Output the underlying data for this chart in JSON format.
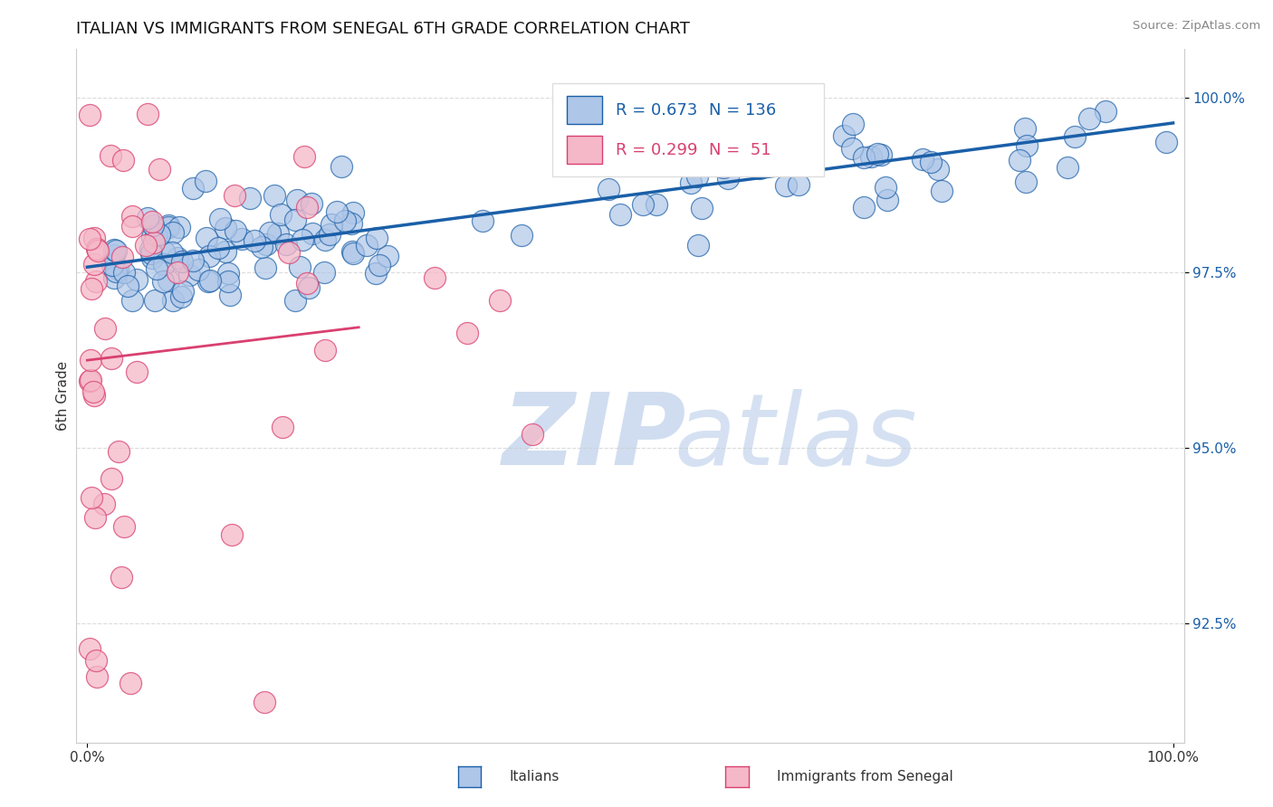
{
  "title": "ITALIAN VS IMMIGRANTS FROM SENEGAL 6TH GRADE CORRELATION CHART",
  "source": "Source: ZipAtlas.com",
  "xlabel_italian": "Italians",
  "xlabel_senegal": "Immigrants from Senegal",
  "ylabel": "6th Grade",
  "watermark_zip": "ZIP",
  "watermark_atlas": "atlas",
  "blue_R": 0.673,
  "blue_N": 136,
  "pink_R": 0.299,
  "pink_N": 51,
  "blue_color": "#aec6e8",
  "pink_color": "#f5b8c8",
  "blue_line_color": "#1a5fa8",
  "pink_line_color": "#d94070",
  "xlim": [
    -0.01,
    1.01
  ],
  "ylim": [
    0.908,
    1.007
  ],
  "yticks": [
    0.925,
    0.95,
    0.975,
    1.0
  ],
  "ytick_labels": [
    "92.5%",
    "95.0%",
    "97.5%",
    "100.0%"
  ],
  "xtick_labels": [
    "0.0%",
    "100.0%"
  ]
}
